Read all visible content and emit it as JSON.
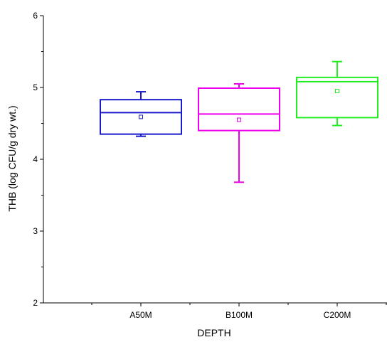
{
  "chart_data": {
    "type": "box",
    "title": "",
    "xlabel": "DEPTH",
    "ylabel": "THB (log CFU/g dry wt.)",
    "ylim": [
      2,
      6
    ],
    "yticks": [
      "2",
      "3",
      "4",
      "5",
      "6"
    ],
    "categories": [
      "A50M",
      "B100M",
      "C200M"
    ],
    "grid": false,
    "boxes": [
      {
        "category": "A50M",
        "color": "#1a1acc",
        "whisker_low": 4.32,
        "q1": 4.35,
        "median": 4.65,
        "q3": 4.83,
        "whisker_high": 4.94,
        "mean": 4.59
      },
      {
        "category": "B100M",
        "color": "#ee00ee",
        "whisker_low": 3.68,
        "q1": 4.4,
        "median": 4.63,
        "q3": 4.99,
        "whisker_high": 5.05,
        "mean": 4.55
      },
      {
        "category": "C200M",
        "color": "#22ee22",
        "whisker_low": 4.47,
        "q1": 4.58,
        "median": 5.08,
        "q3": 5.14,
        "whisker_high": 5.36,
        "mean": 4.95
      }
    ]
  }
}
